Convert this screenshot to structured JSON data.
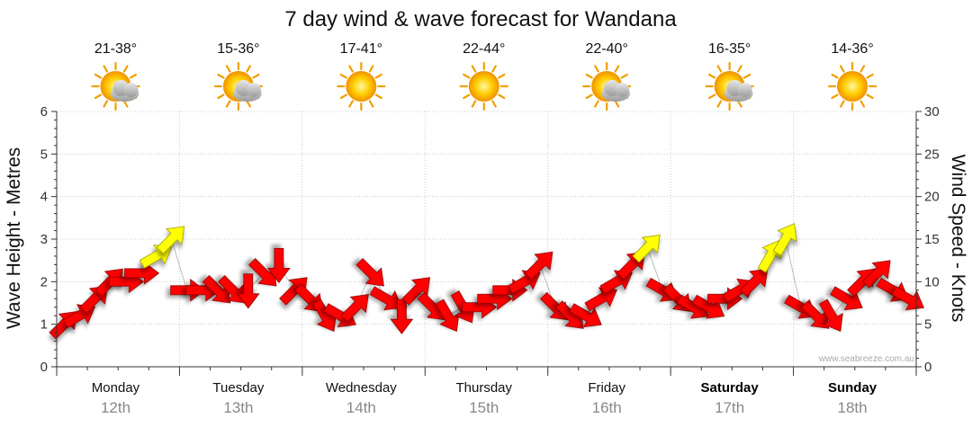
{
  "chart_data": {
    "type": "line",
    "title": "7 day wind & wave forecast for Wandana",
    "ylabel_left": "Wave Height - Metres",
    "ylabel_right": "Wind Speed - Knots",
    "ylim_left": [
      0,
      6
    ],
    "ylim_right": [
      0,
      30
    ],
    "yticks_left": [
      "0",
      "1",
      "2",
      "3",
      "4",
      "5",
      "6"
    ],
    "yticks_right": [
      "0",
      "5",
      "10",
      "15",
      "20",
      "25",
      "30"
    ],
    "grid": true,
    "credit": "www.seabreeze.com.au",
    "colors": {
      "strong_wind": "#ff0000",
      "light_wind": "#ffff00",
      "arrow_outline": "#8a0000",
      "light_outline": "#9a9a00",
      "grid": "#cccccc",
      "wave_line": "#bbbbbb"
    },
    "days": [
      {
        "day": "Monday",
        "date": "12th",
        "temp": "21-38°",
        "weather_icon": "sun-cloud-icon",
        "bold": false
      },
      {
        "day": "Tuesday",
        "date": "13th",
        "temp": "15-36°",
        "weather_icon": "sun-cloud-icon",
        "bold": false
      },
      {
        "day": "Wednesday",
        "date": "14th",
        "temp": "17-41°",
        "weather_icon": "sun-icon",
        "bold": false
      },
      {
        "day": "Thursday",
        "date": "15th",
        "temp": "22-44°",
        "weather_icon": "sun-icon",
        "bold": false
      },
      {
        "day": "Friday",
        "date": "16th",
        "temp": "22-40°",
        "weather_icon": "sun-cloud-icon",
        "bold": false
      },
      {
        "day": "Saturday",
        "date": "17th",
        "temp": "16-35°",
        "weather_icon": "sun-cloud-icon",
        "bold": true
      },
      {
        "day": "Sunday",
        "date": "18th",
        "temp": "14-36°",
        "weather_icon": "sun-icon",
        "bold": true
      }
    ],
    "series": [
      {
        "name": "Wind Speed",
        "unit": "knots",
        "x_days": [
          0.0,
          0.125,
          0.25,
          0.375,
          0.5,
          0.625,
          0.75,
          0.875,
          1.0,
          1.125,
          1.25,
          1.375,
          1.5,
          1.625,
          1.75,
          1.875,
          2.0,
          2.125,
          2.25,
          2.375,
          2.5,
          2.625,
          2.75,
          2.875,
          3.0,
          3.125,
          3.25,
          3.375,
          3.5,
          3.625,
          3.75,
          3.875,
          4.0,
          4.125,
          4.25,
          4.375,
          4.5,
          4.625,
          4.75,
          4.875,
          5.0,
          5.125,
          5.25,
          5.375,
          5.5,
          5.625,
          5.75,
          5.875,
          6.0,
          6.125,
          6.25,
          6.375,
          6.5,
          6.625,
          6.75,
          6.875
        ],
        "values": [
          5,
          6,
          8,
          10,
          10,
          11,
          13,
          15,
          9,
          9,
          9,
          9,
          9,
          11,
          12,
          9,
          8,
          6,
          6,
          7,
          11,
          8,
          6,
          9,
          7,
          6,
          7,
          7,
          8,
          9,
          10,
          12,
          7,
          6,
          6,
          8,
          10,
          12,
          14,
          9,
          8,
          7,
          7,
          8,
          9,
          10,
          13,
          15,
          7,
          6,
          6,
          8,
          10,
          11,
          9,
          8
        ],
        "direction_deg": [
          225,
          240,
          225,
          225,
          270,
          270,
          240,
          225,
          270,
          270,
          315,
          315,
          0,
          315,
          0,
          225,
          315,
          330,
          300,
          225,
          315,
          300,
          0,
          225,
          315,
          330,
          330,
          270,
          270,
          270,
          240,
          225,
          315,
          315,
          300,
          240,
          240,
          225,
          225,
          300,
          315,
          300,
          300,
          270,
          240,
          225,
          210,
          210,
          300,
          315,
          330,
          300,
          225,
          225,
          300,
          300
        ]
      }
    ]
  }
}
